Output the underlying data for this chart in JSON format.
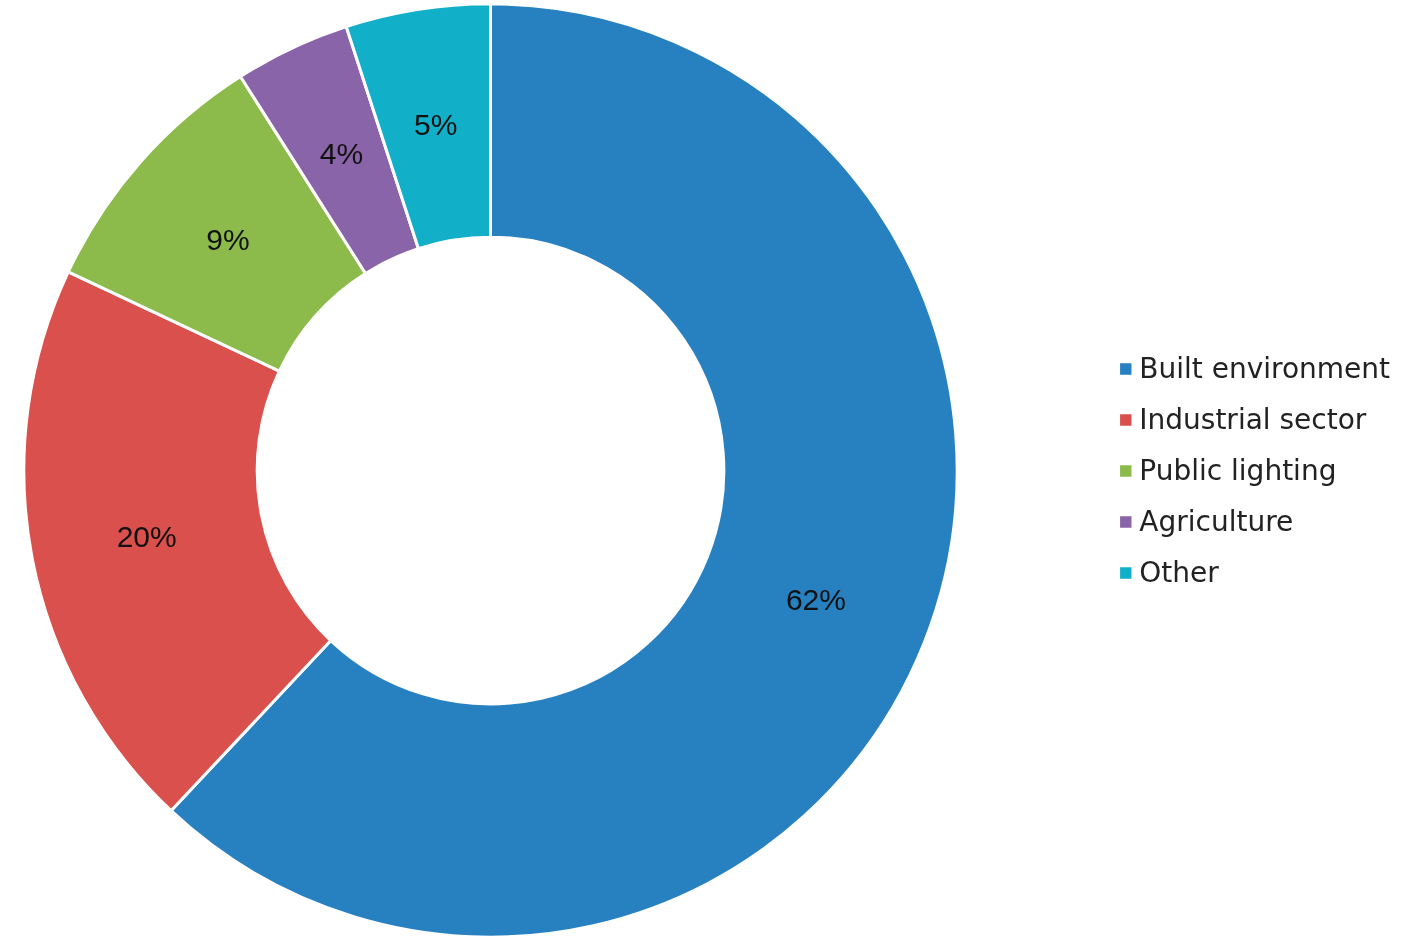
{
  "chart_data": {
    "type": "donut",
    "categories": [
      "Built environment",
      "Industrial sector",
      "Public lighting",
      "Agriculture",
      "Other"
    ],
    "values": [
      62,
      20,
      9,
      4,
      5
    ],
    "colors": [
      "#2781c1",
      "#d9504c",
      "#8cbb4c",
      "#8a64a8",
      "#12afc9"
    ],
    "value_labels": [
      "62%",
      "20%",
      "9%",
      "4%",
      "5%"
    ],
    "legend": "right"
  }
}
